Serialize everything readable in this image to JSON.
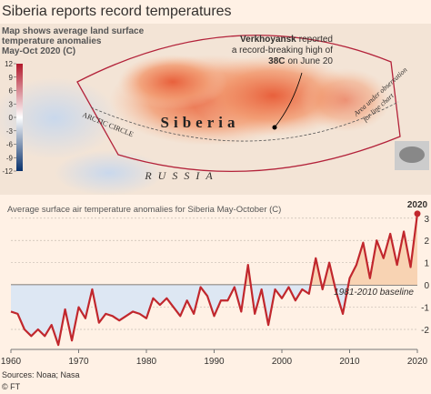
{
  "title": "Siberia reports record temperatures",
  "map": {
    "caption": [
      "Map shows average land surface",
      "temperature anomalies",
      "May-Oct 2020 (C)"
    ],
    "colorbar": {
      "lim": [
        -12,
        12
      ],
      "ticks": [
        12,
        9,
        6,
        3,
        0,
        -3,
        -6,
        -9,
        -12
      ],
      "colors": [
        "#08306b",
        "#ffffff",
        "#b2182b"
      ]
    },
    "annotation": [
      [
        {
          "text": "Verkhoyansk",
          "bold": true
        },
        {
          "text": "reported",
          "bold": false
        }
      ],
      [
        {
          "text": "a record-breaking high of",
          "bold": false
        }
      ],
      [
        {
          "text": "38C",
          "bold": true
        },
        {
          "text": "on June 20",
          "bold": false
        }
      ]
    ],
    "region_label": "Siberia",
    "country_label": "RUSSIA",
    "circle_label": "ARCTIC CIRCLE",
    "area_label": [
      "Area under observation",
      "for line chart"
    ]
  },
  "chart_data": {
    "type": "line",
    "title": "Average surface air temperature anomalies for Siberia May-October (C)",
    "x": [
      1960,
      1961,
      1962,
      1963,
      1964,
      1965,
      1966,
      1967,
      1968,
      1969,
      1970,
      1971,
      1972,
      1973,
      1974,
      1975,
      1976,
      1977,
      1978,
      1979,
      1980,
      1981,
      1982,
      1983,
      1984,
      1985,
      1986,
      1987,
      1988,
      1989,
      1990,
      1991,
      1992,
      1993,
      1994,
      1995,
      1996,
      1997,
      1998,
      1999,
      2000,
      2001,
      2002,
      2003,
      2004,
      2005,
      2006,
      2007,
      2008,
      2009,
      2010,
      2011,
      2012,
      2013,
      2014,
      2015,
      2016,
      2017,
      2018,
      2019,
      2020
    ],
    "series": [
      {
        "name": "Anomaly",
        "color": "#c1272d",
        "values": [
          -1.2,
          -1.3,
          -2.0,
          -2.3,
          -2.0,
          -2.3,
          -1.8,
          -2.7,
          -1.1,
          -2.5,
          -1.0,
          -1.5,
          -0.2,
          -1.7,
          -1.3,
          -1.4,
          -1.6,
          -1.4,
          -1.2,
          -1.3,
          -1.5,
          -0.6,
          -0.9,
          -0.6,
          -1.0,
          -1.4,
          -0.7,
          -1.3,
          -0.1,
          -0.5,
          -1.4,
          -0.7,
          -0.7,
          -0.1,
          -1.2,
          0.9,
          -1.3,
          -0.2,
          -1.8,
          -0.2,
          -0.6,
          -0.1,
          -0.7,
          -0.2,
          -0.4,
          1.2,
          -0.2,
          1.0,
          -0.3,
          -1.3,
          0.3,
          0.9,
          1.9,
          0.3,
          2.0,
          1.2,
          2.3,
          0.9,
          2.4,
          0.8,
          3.2
        ]
      }
    ],
    "xlim": [
      1960,
      2020
    ],
    "xticks": [
      1960,
      1970,
      1980,
      1990,
      2000,
      2010,
      2020
    ],
    "ylim": [
      -2.9,
      3.4
    ],
    "yticks": [
      -2,
      -1,
      0,
      1,
      2,
      3
    ],
    "grid": true,
    "fill_colors": {
      "above": "#f8d3b3",
      "below": "#dde7f3"
    },
    "baseline_label": "1981-2010 baseline",
    "end_label": "2020"
  },
  "source": "Sources: Noaa; Nasa",
  "credit": "© FT"
}
